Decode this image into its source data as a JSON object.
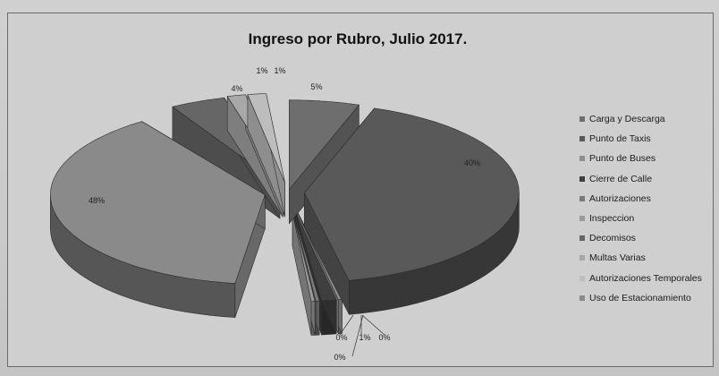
{
  "chart_data": {
    "type": "pie",
    "title": "Ingreso por Rubro, Julio 2017.",
    "categories": [
      "Carga y Descarga",
      "Punto de Taxis",
      "Punto de Buses",
      "Cierre de Calle",
      "Autorizaciones",
      "Inspeccion",
      "Decomisos",
      "Multas Varias",
      "Autorizaciones Temporales",
      "Uso de Estacionamiento"
    ],
    "values": [
      5,
      40,
      0,
      1,
      0,
      0,
      4,
      1,
      1,
      48
    ],
    "data_labels": [
      "5%",
      "40%",
      "0%",
      "1%",
      "0%",
      "0%",
      "4%",
      "1%",
      "1%",
      "48%"
    ],
    "colors": [
      "#6e6e6e",
      "#595959",
      "#8f8f8f",
      "#3f3f3f",
      "#7a7a7a",
      "#9a9a9a",
      "#666666",
      "#a8a8a8",
      "#bdbdbd",
      "#8a8a8a"
    ],
    "legend_position": "right",
    "chart_style": "exploded 3D pie"
  }
}
